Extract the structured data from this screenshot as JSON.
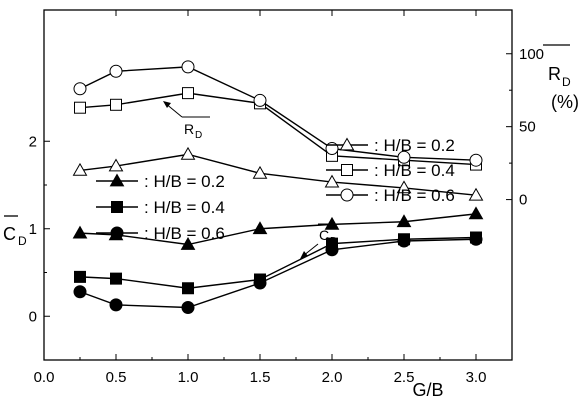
{
  "chart_data": [
    {
      "type": "line",
      "title": "",
      "x": [
        0.25,
        0.5,
        1.0,
        1.5,
        2.0,
        2.5,
        3.0
      ],
      "xlabel": "G/B",
      "xlim": [
        0.0,
        3.25
      ],
      "xticks": [
        "0.0",
        "0.5",
        "1.0",
        "1.5",
        "2.0",
        "2.5",
        "3.0"
      ],
      "ylabel": "C_D (mean)",
      "ylabel_main": "C",
      "ylabel_sub": "D",
      "ylim": [
        -0.5,
        3.5
      ],
      "yticks": [
        "0",
        "1",
        "2"
      ],
      "annotation": "C_D",
      "series": [
        {
          "name": ": H/B = 0.2",
          "marker": "filled-triangle",
          "values": [
            0.95,
            0.93,
            0.82,
            1.0,
            1.05,
            1.08,
            1.17
          ]
        },
        {
          "name": ": H/B = 0.4",
          "marker": "filled-square",
          "values": [
            0.45,
            0.43,
            0.32,
            0.42,
            0.83,
            0.88,
            0.9
          ]
        },
        {
          "name": ": H/B = 0.6",
          "marker": "filled-circle",
          "values": [
            0.28,
            0.13,
            0.1,
            0.38,
            0.76,
            0.86,
            0.88
          ]
        }
      ]
    },
    {
      "type": "line",
      "title": "",
      "x": [
        0.25,
        0.5,
        1.0,
        1.5,
        2.0,
        2.5,
        3.0
      ],
      "ylabel": "R_D (mean) (%)",
      "ylabel_main": "R",
      "ylabel_sub": "D",
      "ylabel_unit": "(%)",
      "yaxis_side": "right",
      "ylim": [
        -110,
        130
      ],
      "yticks": [
        "0",
        "50",
        "100"
      ],
      "annotation": "R_D",
      "series": [
        {
          "name": ": H/B = 0.2",
          "marker": "open-triangle",
          "values": [
            20,
            23,
            31,
            18,
            12,
            8,
            3
          ]
        },
        {
          "name": ": H/B = 0.4",
          "marker": "open-square",
          "values": [
            63,
            65,
            73,
            66,
            30,
            27,
            24
          ]
        },
        {
          "name": ": H/B = 0.6",
          "marker": "open-circle",
          "values": [
            76,
            88,
            91,
            68,
            35,
            29,
            27
          ]
        }
      ]
    }
  ]
}
